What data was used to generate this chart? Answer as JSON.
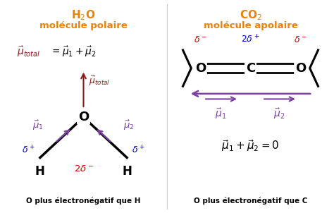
{
  "title_left": "H$_2$O",
  "subtitle_left": "molécule polaire",
  "title_right": "CO$_2$",
  "subtitle_right": "molécule apolaire",
  "bottom_left": "O plus électronégatif que H",
  "bottom_right": "O plus électronégatif que C",
  "orange_color": "#E8820A",
  "purple_color": "#7B3F9E",
  "dark_red_color": "#8B1A1A",
  "red_color": "#CC0000",
  "blue_color": "#0000CC",
  "black_color": "#000000",
  "bg_color": "#FFFFFF"
}
